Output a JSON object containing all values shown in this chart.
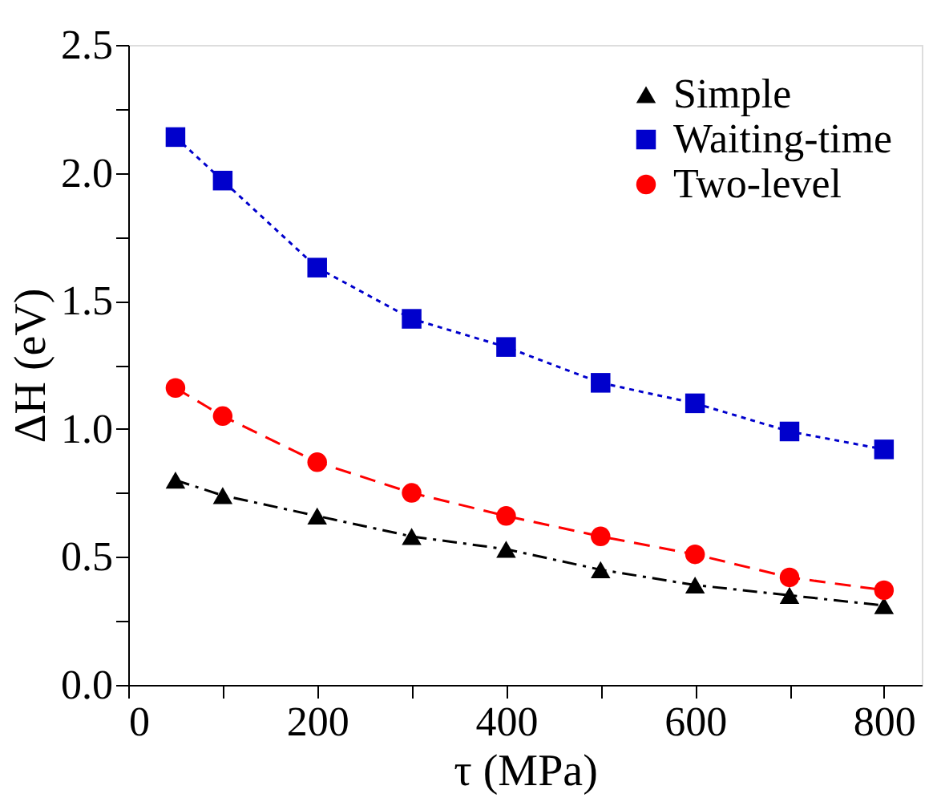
{
  "chart_data": {
    "type": "line",
    "xlabel": "τ (MPa)",
    "ylabel": "ΔH (eV)",
    "x": [
      50,
      100,
      200,
      300,
      400,
      500,
      600,
      700,
      800
    ],
    "series": [
      {
        "name": "Simple",
        "color": "#000000",
        "marker": "triangle",
        "line_style": "dashdot",
        "values": [
          0.8,
          0.74,
          0.66,
          0.58,
          0.53,
          0.45,
          0.39,
          0.35,
          0.31
        ]
      },
      {
        "name": "Waiting-time",
        "color": "#0000cc",
        "marker": "square",
        "line_style": "dotted",
        "values": [
          2.14,
          1.97,
          1.63,
          1.43,
          1.32,
          1.18,
          1.1,
          0.99,
          0.92
        ]
      },
      {
        "name": "Two-level",
        "color": "#ff0000",
        "marker": "circle",
        "line_style": "dashed",
        "values": [
          1.16,
          1.05,
          0.87,
          0.75,
          0.66,
          0.58,
          0.51,
          0.42,
          0.37
        ]
      }
    ],
    "xlim": [
      0,
      840
    ],
    "ylim": [
      0,
      2.5
    ],
    "xticks": [
      0,
      {
        "value": 100,
        "label": null
      },
      200,
      {
        "value": 300,
        "label": null
      },
      400,
      {
        "value": 500,
        "label": null
      },
      600,
      {
        "value": 700,
        "label": null
      },
      800
    ],
    "yticks": [
      {
        "value": 0,
        "label": "0.0"
      },
      {
        "value": 0.25,
        "label": null
      },
      0.5,
      {
        "value": 0.75,
        "label": null
      },
      {
        "value": 1,
        "label": "1.0"
      },
      {
        "value": 1.25,
        "label": null
      },
      1.5,
      {
        "value": 1.75,
        "label": null
      },
      {
        "value": 2,
        "label": "2.0"
      },
      {
        "value": 2.25,
        "label": null
      },
      2.5
    ],
    "grid": false,
    "legend": "top right"
  }
}
